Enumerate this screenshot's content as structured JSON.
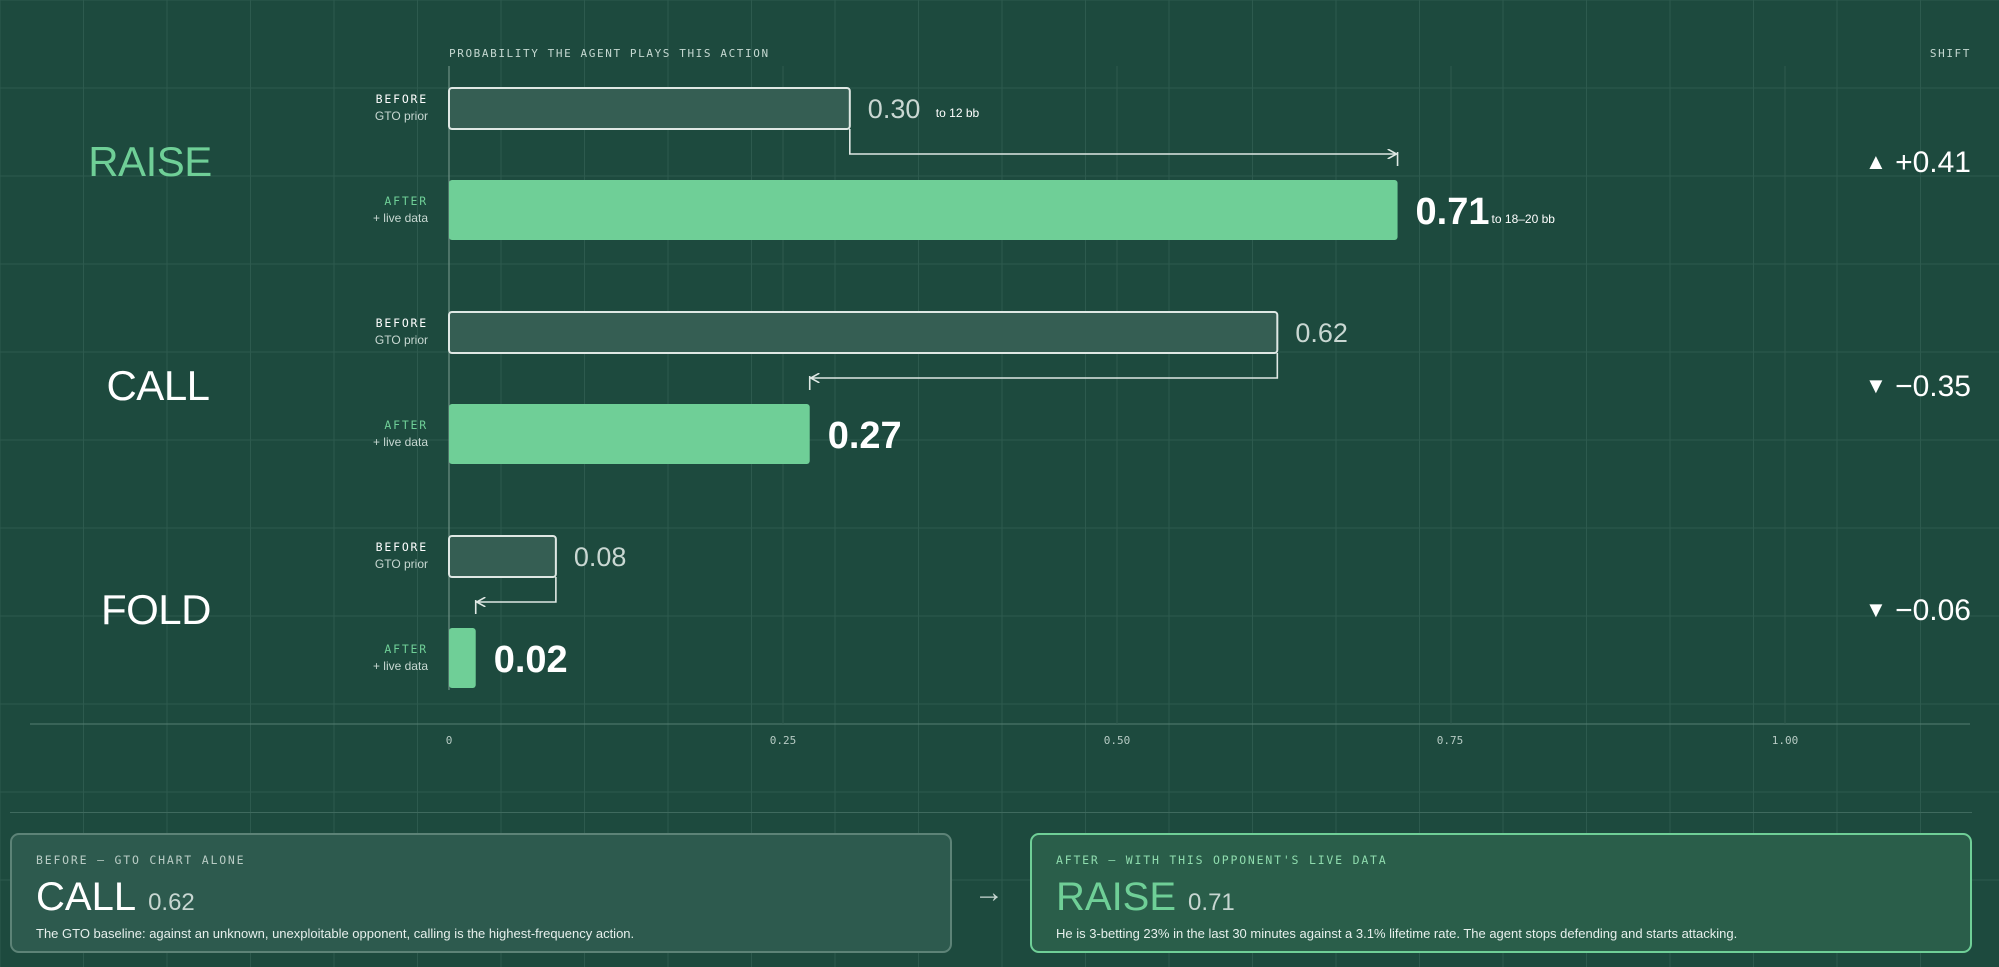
{
  "header": {
    "axis_title": "PROBABILITY THE AGENT PLAYS THIS ACTION",
    "shift_title": "SHIFT"
  },
  "colors": {
    "background": "#1d4a3e",
    "accent_green": "#6fcf97",
    "before_bar_fill": "#355e53",
    "before_bar_stroke": "#dfe8e4",
    "grid": "#2d5a4e"
  },
  "chart_data": {
    "type": "bar",
    "orientation": "horizontal",
    "xlim": [
      0,
      1.0
    ],
    "x_ticks": [
      "0",
      "0.25",
      "0.50",
      "0.75",
      "1.00"
    ],
    "x_tick_values": [
      0,
      0.25,
      0.5,
      0.75,
      1.0
    ],
    "grid": true,
    "series": [
      {
        "name": "BEFORE",
        "sub": "GTO prior",
        "values": [
          0.3,
          0.62,
          0.08
        ]
      },
      {
        "name": "AFTER",
        "sub": "+ live data",
        "values": [
          0.71,
          0.27,
          0.02
        ]
      }
    ],
    "groups": [
      {
        "action": "RAISE",
        "highlight": true,
        "before_value": 0.3,
        "before_label": "0.30",
        "before_note": "to 12 bb",
        "after_value": 0.71,
        "after_label": "0.71",
        "after_note": "to 18–20 bb",
        "shift_arrow": "▲",
        "shift_text": "+0.41"
      },
      {
        "action": "CALL",
        "highlight": false,
        "before_value": 0.62,
        "before_label": "0.62",
        "before_note": "",
        "after_value": 0.27,
        "after_label": "0.27",
        "after_note": "",
        "shift_arrow": "▼",
        "shift_text": "−0.35"
      },
      {
        "action": "FOLD",
        "highlight": false,
        "before_value": 0.08,
        "before_label": "0.08",
        "before_note": "",
        "after_value": 0.02,
        "after_label": "0.02",
        "after_note": "",
        "shift_arrow": "▼",
        "shift_text": "−0.06"
      }
    ]
  },
  "cards": {
    "before": {
      "kicker": "BEFORE — GTO CHART ALONE",
      "action": "CALL",
      "value": "0.62",
      "description": "The GTO baseline: against an unknown, unexploitable opponent, calling is the highest-frequency action."
    },
    "arrow": "→",
    "after": {
      "kicker": "AFTER — WITH THIS OPPONENT'S LIVE DATA",
      "action": "RAISE",
      "value": "0.71",
      "description": "He is 3-betting 23% in the last 30 minutes against a 3.1% lifetime rate. The agent stops defending and starts attacking."
    }
  }
}
